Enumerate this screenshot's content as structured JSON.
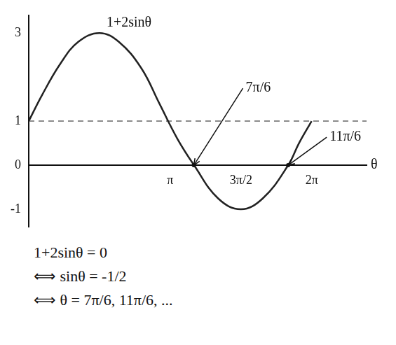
{
  "chart_data": {
    "type": "line",
    "curve_label": "1+2sinθ",
    "x_label": "θ",
    "x": [
      0,
      0.3,
      0.7,
      1.1,
      1.57,
      2.0,
      2.5,
      2.9,
      3.3,
      3.67,
      4.2,
      4.71,
      5.2,
      5.76,
      6.0,
      6.28
    ],
    "values": [
      1,
      1.6,
      2.3,
      2.8,
      3,
      2.8,
      2.2,
      1.4,
      0.6,
      0,
      -0.75,
      -1,
      -0.75,
      0,
      0.5,
      1
    ],
    "color": "#222222",
    "xlim": [
      0,
      7.5
    ],
    "ylim": [
      -1.4,
      3.4
    ],
    "xticks": [
      {
        "value": 3.1416,
        "label": "π"
      },
      {
        "value": 4.7124,
        "label": "3π/2"
      },
      {
        "value": 6.2832,
        "label": "2π"
      }
    ],
    "yticks": [
      -1,
      0,
      1,
      3
    ],
    "grid": false,
    "reference_lines": [
      {
        "value": 1,
        "line_style": "dashed"
      }
    ],
    "annotations": [
      {
        "text": "7π/6",
        "x": 3.6652,
        "y": 0
      },
      {
        "text": "11π/6",
        "x": 5.7596,
        "y": 0
      }
    ]
  },
  "equations": [
    "1+2sinθ = 0",
    "⟺ sinθ = -1/2",
    "⟺ θ = 7π/6, 11π/6, ..."
  ]
}
